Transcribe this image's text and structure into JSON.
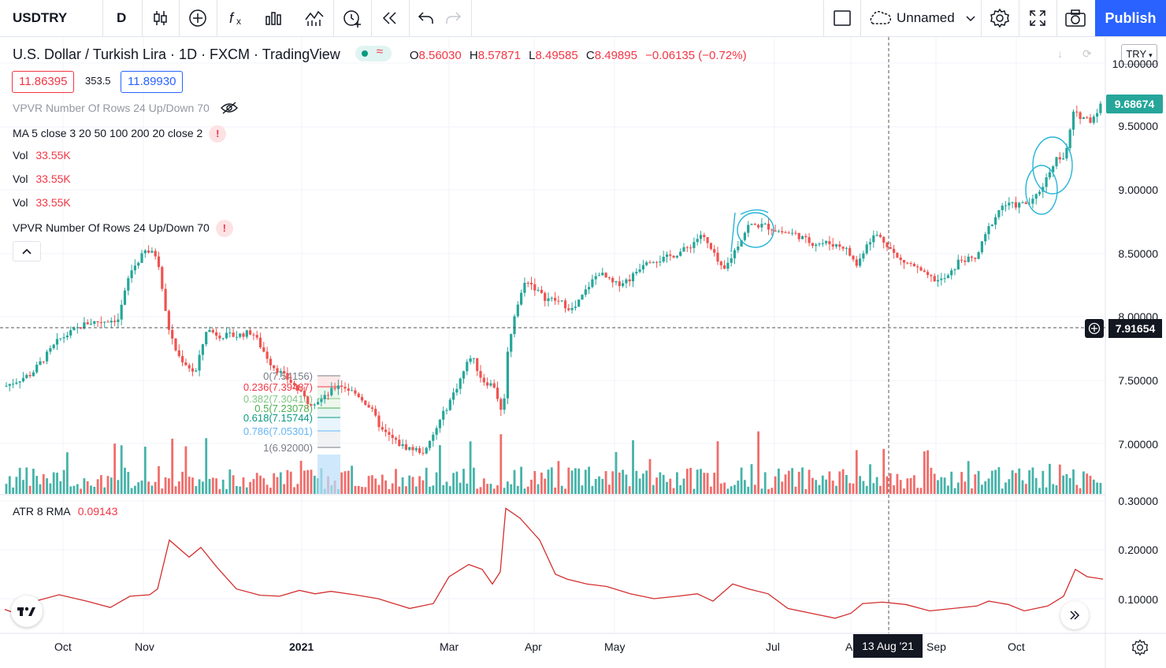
{
  "toolbar": {
    "symbol": "USDTRY",
    "interval": "D",
    "layout_name": "Unnamed",
    "publish_label": "Publish"
  },
  "header": {
    "title": "U.S. Dollar / Turkish Lira · 1D · FXCM · TradingView",
    "ohlc": {
      "o_label": "O",
      "o": "8.56030",
      "h_label": "H",
      "h": "8.57871",
      "l_label": "L",
      "l": "8.49585",
      "c_label": "C",
      "c": "8.49895",
      "change": "−0.06135 (−0.72%)"
    },
    "bid": "11.86395",
    "spread": "353.5",
    "ask": "11.89930",
    "currency": "TRY"
  },
  "legend": {
    "vpvr1": "VPVR Number Of Rows 24 Up/Down 70",
    "ma": "MA 5 close 3 20 50 100 200 20 close 2",
    "vol_label": "Vol",
    "vol_value": "33.55K",
    "vpvr2": "VPVR Number Of Rows 24 Up/Down 70",
    "atr_label": "ATR 8 RMA",
    "atr_value": "0.09143"
  },
  "price_axis": {
    "labels": [
      "10.00000",
      "9.50000",
      "9.00000",
      "8.50000",
      "8.00000",
      "7.50000",
      "7.00000"
    ],
    "last_price": "9.68674",
    "crosshair_price": "7.91654",
    "atr_labels": [
      "0.30000",
      "0.20000",
      "0.10000"
    ]
  },
  "time_axis": {
    "labels": [
      "Oct",
      "Nov",
      "2021",
      "Mar",
      "Apr",
      "May",
      "Jul",
      "A",
      "Sep",
      "Oct"
    ],
    "crosshair_date": "13 Aug '21"
  },
  "fib": {
    "levels": [
      {
        "label": "0(7.54156)",
        "color": "#787b86"
      },
      {
        "label": "0.236(7.39487)",
        "color": "#f23645"
      },
      {
        "label": "0.382(7.30410)",
        "color": "#81c784"
      },
      {
        "label": "0.5(7.23078)",
        "color": "#4caf50"
      },
      {
        "label": "0.618(7.15744)",
        "color": "#089981"
      },
      {
        "label": "0.786(7.05301)",
        "color": "#64b5f6"
      },
      {
        "label": "1(6.92000)",
        "color": "#787b86"
      }
    ]
  },
  "colors": {
    "up": "#26a69a",
    "down": "#ef5350",
    "atr": "#d32f2f",
    "accent": "#2962ff",
    "drawing": "#26b5d6"
  },
  "icons": {
    "bars_style": "candles-icon",
    "add_indicator": "plus-circle-icon",
    "indicators": "fx-icon",
    "compare": "bar-chart-icon",
    "templates": "templates-icon",
    "alert": "alarm-plus-icon",
    "replay": "rewind-icon",
    "undo": "undo-icon",
    "redo": "redo-icon",
    "settings": "gear-icon",
    "fullscreen": "fullscreen-icon",
    "snapshot": "camera-icon",
    "hide": "eye-off-icon",
    "collapse": "chevron-up-icon",
    "scroll_right": "double-chevron-right-icon",
    "logo": "tradingview-logo-icon"
  }
}
